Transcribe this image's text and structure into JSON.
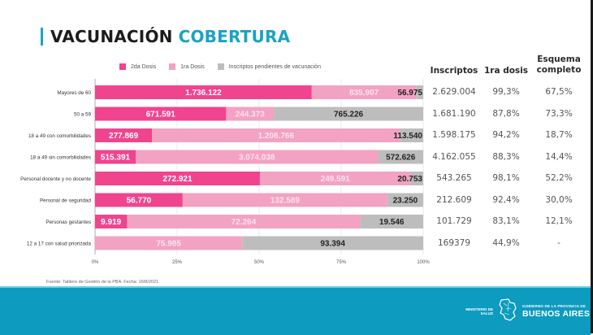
{
  "title": {
    "main": "VACUNACIÓN",
    "accent": "COBERTURA"
  },
  "colors": {
    "accent": "#1aa3c2",
    "segunda_dosis": "#f0448f",
    "primera_dosis": "#f2a2c2",
    "pendientes": "#bdbdbd",
    "footer": "#0d9bbf"
  },
  "chart_data": {
    "type": "bar",
    "orientation": "horizontal",
    "stacked": "percent",
    "title": "VACUNACIÓN COBERTURA",
    "xlabel": "",
    "ylabel": "",
    "xlim": [
      0,
      100
    ],
    "x_ticks": [
      "0%",
      "25%",
      "50%",
      "75%",
      "100%"
    ],
    "grid": true,
    "legend_position": "top",
    "categories": [
      "Mayores de 60",
      "50 a 59",
      "18 a 49 con comorbilidades",
      "18 a 49 sin comorbilidades",
      "Personal docente y no docente",
      "Personal de seguridad",
      "Personas gestantes",
      "12 a 17 con salud priorizada"
    ],
    "series": [
      {
        "name": "2da Dosis",
        "color": "#f0448f",
        "values": [
          1736122,
          671591,
          277869,
          515391,
          272921,
          56770,
          9919,
          0
        ],
        "labels": [
          "1.736.122",
          "671.591",
          "277.869",
          "515.391",
          "272.921",
          "56.770",
          "9.919",
          ""
        ]
      },
      {
        "name": "1ra Dosis",
        "color": "#f2a2c2",
        "values": [
          835907,
          244373,
          1206766,
          3074038,
          249591,
          132589,
          72264,
          75985
        ],
        "labels": [
          "835.907",
          "244.373",
          "1.206.766",
          "3.074.038",
          "249.591",
          "132.589",
          "72.264",
          "75.985"
        ]
      },
      {
        "name": "Inscriptos pendientes de vacunación",
        "color": "#bdbdbd",
        "values": [
          56975,
          765226,
          113540,
          572626,
          20753,
          23250,
          19546,
          93394
        ],
        "labels": [
          "56.975",
          "765.226",
          "113.540",
          "572.626",
          "20.753",
          "23.250",
          "19.546",
          "93.394"
        ]
      }
    ]
  },
  "table": {
    "headers": {
      "inscriptos": "Inscriptos",
      "primera": "1ra dosis",
      "esquema_l1": "Esquema",
      "esquema_l2": "completo"
    },
    "rows": [
      {
        "inscriptos": "2.629.004",
        "primera": "99,3%",
        "esquema": "67,5%"
      },
      {
        "inscriptos": "1.681.190",
        "primera": "87,8%",
        "esquema": "73,3%"
      },
      {
        "inscriptos": "1.598.175",
        "primera": "94,2%",
        "esquema": "18,7%"
      },
      {
        "inscriptos": "4.162.055",
        "primera": "88,3%",
        "esquema": "14,4%"
      },
      {
        "inscriptos": "543.265",
        "primera": "98,1%",
        "esquema": "52,2%"
      },
      {
        "inscriptos": "212.609",
        "primera": "92,4%",
        "esquema": "30,0%"
      },
      {
        "inscriptos": "101.729",
        "primera": "83,1%",
        "esquema": "12,1%"
      },
      {
        "inscriptos": "169379",
        "primera": "44,9%",
        "esquema": "-"
      }
    ]
  },
  "source": "Fuente: Tablero de Gestión de la PBA. Fecha: 16/8/2021",
  "footer": {
    "ministerio": "MINISTERIO DE SALUD",
    "gobierno": "GOBIERNO DE LA PROVINCIA DE",
    "provincia": "BUENOS AIRES",
    "logo_icon": "province-map-icon"
  }
}
